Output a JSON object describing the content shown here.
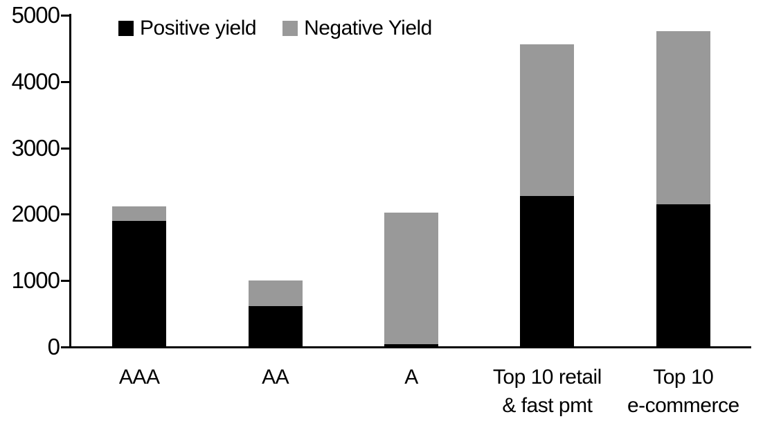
{
  "chart_data": {
    "type": "bar",
    "stacked": true,
    "title": "",
    "xlabel": "",
    "ylabel": "",
    "categories": [
      "AAA",
      "AA",
      "A",
      "Top 10 retail\n& fast pmt",
      "Top 10\ne-commerce"
    ],
    "series": [
      {
        "name": "Positive yield",
        "color": "#000000",
        "values": [
          1900,
          620,
          40,
          2280,
          2150
        ]
      },
      {
        "name": "Negative Yield",
        "color": "#999999",
        "values": [
          220,
          380,
          1990,
          2280,
          2610
        ]
      }
    ],
    "totals": [
      2120,
      1000,
      2030,
      4560,
      4760
    ],
    "ylim": [
      0,
      5000
    ],
    "yticks": [
      0,
      1000,
      2000,
      3000,
      4000,
      5000
    ],
    "grid": "off",
    "legend_position": "top-left",
    "axis_color": "#000000",
    "background_color": "#ffffff"
  }
}
